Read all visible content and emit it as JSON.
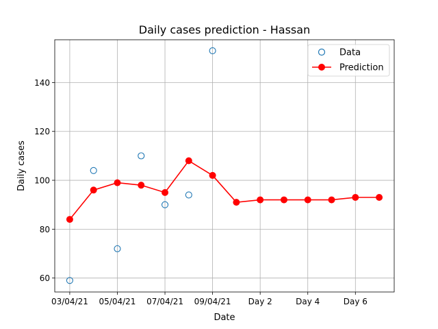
{
  "chart_data": {
    "type": "line",
    "title": "Daily cases prediction - Hassan",
    "xlabel": "Date",
    "ylabel": "Daily cases",
    "x_tick_labels": [
      "03/04/21",
      "05/04/21",
      "07/04/21",
      "09/04/21",
      "Day 2",
      "Day 4",
      "Day 6"
    ],
    "x_tick_positions": [
      0,
      2,
      4,
      6,
      8,
      10,
      12
    ],
    "xlim": [
      -0.63,
      13.63
    ],
    "y_ticks": [
      60,
      80,
      100,
      120,
      140
    ],
    "ylim": [
      54.3,
      157.5
    ],
    "grid": true,
    "legend_position": "top-right",
    "series": [
      {
        "name": "Data",
        "style": "hollow-markers",
        "color": "#1f77b4",
        "x": [
          0,
          1,
          2,
          3,
          4,
          5,
          6
        ],
        "y": [
          59,
          104,
          72,
          110,
          90,
          94,
          153
        ]
      },
      {
        "name": "Prediction",
        "style": "line-with-markers",
        "color": "#ff0000",
        "x": [
          0,
          1,
          2,
          3,
          4,
          5,
          6,
          7,
          8,
          9,
          10,
          11,
          12,
          13
        ],
        "y": [
          84,
          96,
          99,
          98,
          95,
          108,
          102,
          91,
          92,
          92,
          92,
          92,
          93,
          93
        ]
      }
    ]
  }
}
